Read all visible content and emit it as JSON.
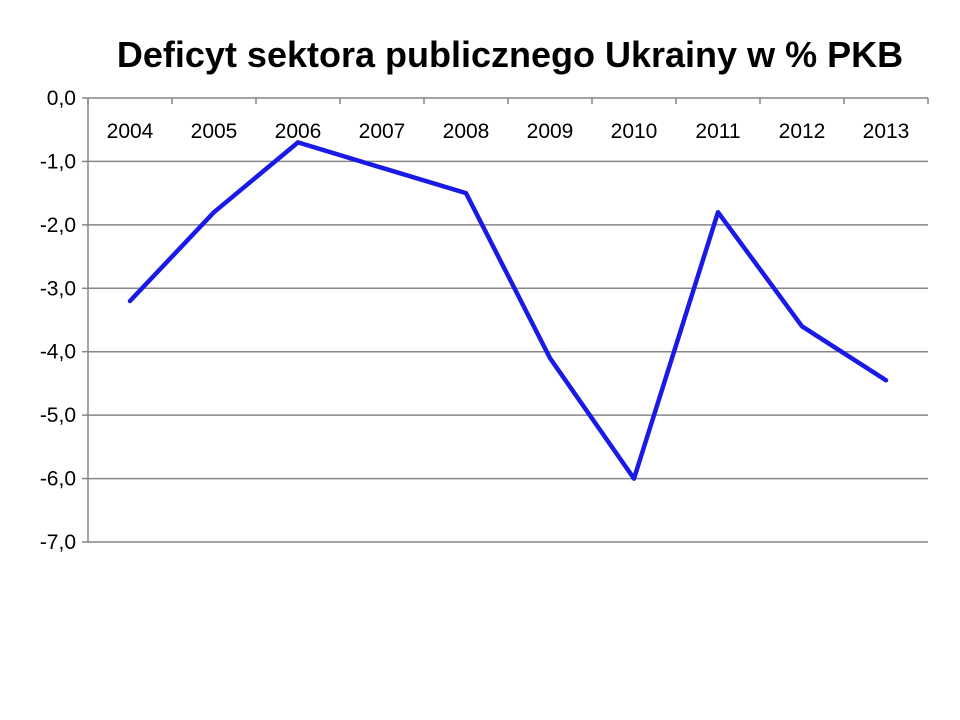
{
  "chart_data": {
    "type": "line",
    "title": "Deficyt sektora publicznego Ukrainy w % PKB",
    "xlabel": "",
    "ylabel": "",
    "categories": [
      "2004",
      "2005",
      "2006",
      "2007",
      "2008",
      "2009",
      "2010",
      "2011",
      "2012",
      "2013"
    ],
    "series": [
      {
        "values": [
          -3.2,
          -1.8,
          -0.7,
          -1.1,
          -1.5,
          -4.1,
          -6.0,
          -1.8,
          -3.6,
          -4.45
        ]
      }
    ],
    "ylim": [
      -7.0,
      0.0
    ],
    "yticks": [
      "0,0",
      "-1,0",
      "-2,0",
      "-3,0",
      "-4,0",
      "-5,0",
      "-6,0",
      "-7,0"
    ],
    "ytick_values": [
      0,
      -1,
      -2,
      -3,
      -4,
      -5,
      -6,
      -7
    ],
    "grid": true,
    "x_axis_position": "top",
    "line_color": "#1a1ae6",
    "gridline_color": "#868686"
  }
}
